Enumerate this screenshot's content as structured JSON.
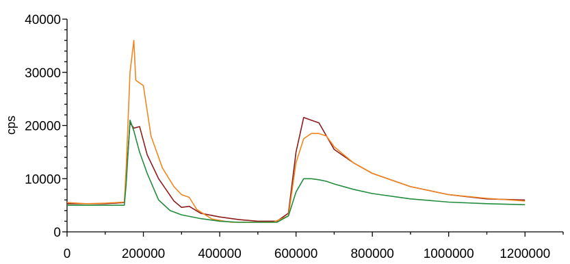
{
  "chart_data": {
    "type": "line",
    "title": "",
    "xlabel": "",
    "ylabel": "cps",
    "xlim": [
      0,
      1300000
    ],
    "ylim": [
      0,
      40000
    ],
    "x_ticks": [
      0,
      200000,
      400000,
      600000,
      800000,
      1000000,
      1200000
    ],
    "x_tick_labels": [
      "0",
      "200000",
      "400000",
      "600000",
      "800000",
      "1000000",
      "1200000"
    ],
    "y_ticks": [
      0,
      10000,
      20000,
      30000,
      40000
    ],
    "y_tick_labels": [
      "0",
      "10000",
      "20000",
      "30000",
      "40000"
    ],
    "grid": false,
    "legend": "none",
    "series": [
      {
        "color": "#8b1a1a",
        "x": [
          0,
          50000,
          100000,
          150000,
          155000,
          165000,
          175000,
          190000,
          210000,
          240000,
          280000,
          300000,
          320000,
          350000,
          400000,
          450000,
          500000,
          550000,
          580000,
          600000,
          620000,
          640000,
          660000,
          680000,
          700000,
          750000,
          800000,
          900000,
          1000000,
          1100000,
          1200000
        ],
        "values": [
          5300,
          5300,
          5300,
          5500,
          10000,
          20500,
          19500,
          19800,
          14500,
          10000,
          5800,
          4600,
          4800,
          3500,
          2800,
          2300,
          2000,
          2000,
          3500,
          15000,
          21500,
          21000,
          20500,
          18000,
          15500,
          13000,
          11000,
          8500,
          7000,
          6200,
          6000
        ]
      },
      {
        "color": "#f0861f",
        "x": [
          0,
          50000,
          100000,
          150000,
          155000,
          165000,
          175000,
          180000,
          200000,
          220000,
          250000,
          280000,
          300000,
          320000,
          340000,
          380000,
          430000,
          480000,
          540000,
          580000,
          600000,
          620000,
          640000,
          660000,
          680000,
          700000,
          750000,
          800000,
          900000,
          1000000,
          1100000,
          1200000
        ],
        "values": [
          5500,
          5300,
          5400,
          5600,
          12000,
          30000,
          36000,
          28500,
          27500,
          18000,
          12000,
          8500,
          7000,
          6500,
          4200,
          2400,
          1800,
          1800,
          1800,
          3000,
          13000,
          17500,
          18500,
          18500,
          18000,
          16000,
          13000,
          11000,
          8500,
          7000,
          6300,
          5800
        ]
      },
      {
        "color": "#228b3c",
        "x": [
          0,
          50000,
          100000,
          150000,
          155000,
          165000,
          175000,
          190000,
          210000,
          240000,
          270000,
          300000,
          350000,
          400000,
          450000,
          500000,
          550000,
          580000,
          600000,
          620000,
          640000,
          660000,
          680000,
          700000,
          750000,
          800000,
          900000,
          1000000,
          1100000,
          1200000
        ],
        "values": [
          5000,
          5000,
          5000,
          5000,
          9000,
          21000,
          19000,
          15000,
          11000,
          6000,
          4000,
          3200,
          2500,
          2000,
          1800,
          1800,
          1800,
          3000,
          7500,
          10000,
          10000,
          9800,
          9500,
          9000,
          8000,
          7200,
          6200,
          5600,
          5300,
          5100
        ]
      }
    ]
  }
}
